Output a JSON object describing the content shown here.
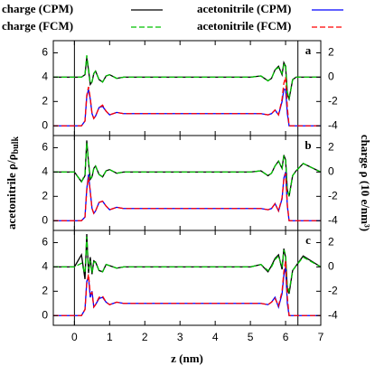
{
  "chart_data": [
    {
      "type": "line",
      "panel_label": "a",
      "x": [
        -0.6,
        0,
        0.2,
        0.3,
        0.35,
        0.4,
        0.45,
        0.5,
        0.55,
        0.6,
        0.7,
        0.8,
        0.9,
        1.0,
        1.2,
        1.4,
        1.6,
        2,
        3,
        4,
        5,
        5.3,
        5.5,
        5.6,
        5.7,
        5.8,
        5.9,
        5.95,
        6.0,
        6.05,
        6.1,
        6.2,
        6.3,
        6.5,
        7
      ],
      "xlim": [
        -0.6,
        7
      ],
      "xticks": [
        0,
        1,
        2,
        3,
        4,
        5,
        6,
        7
      ],
      "ylim": [
        -0.8,
        7
      ],
      "yticks": [
        0,
        2,
        4,
        6
      ],
      "y2lim": [
        -4.8,
        3
      ],
      "y2ticks": [
        -4,
        -2,
        0,
        2
      ],
      "vlines": [
        0,
        6.35
      ],
      "series": [
        {
          "name": "charge (CPM)",
          "color": "#000000",
          "dash": "none",
          "axis": "y2",
          "values": [
            0,
            0,
            0,
            0.2,
            1.6,
            0.6,
            -0.6,
            -0.4,
            0.3,
            0.5,
            -0.2,
            -0.4,
            0.1,
            0.2,
            -0.1,
            0,
            0,
            0,
            0,
            0,
            0,
            0.1,
            -0.3,
            -0.1,
            0.6,
            0.9,
            0.2,
            1.2,
            0.9,
            -1.4,
            -1.8,
            -0.2,
            0,
            0,
            0
          ]
        },
        {
          "name": "charge (FCM)",
          "color": "#00c000",
          "dash": "6 3",
          "axis": "y2",
          "values": [
            0,
            0,
            0,
            0.2,
            1.8,
            0.7,
            -0.5,
            -0.4,
            0.3,
            0.5,
            -0.2,
            -0.4,
            0.1,
            0.2,
            -0.1,
            0,
            0,
            0,
            0,
            0,
            0,
            0.1,
            -0.3,
            -0.1,
            0.6,
            0.8,
            0.3,
            1.0,
            1.1,
            -1.2,
            -1.8,
            -0.2,
            0,
            0,
            0
          ]
        },
        {
          "name": "acetonitrile (CPM)",
          "color": "#0000ff",
          "dash": "none",
          "axis": "y",
          "values": [
            0,
            0,
            0,
            0.4,
            2.4,
            3.0,
            2.2,
            1.0,
            0.6,
            0.8,
            1.5,
            1.6,
            1.2,
            0.9,
            1.1,
            1.0,
            1.0,
            1,
            1,
            1,
            1,
            1.0,
            0.9,
            1.0,
            1.3,
            0.9,
            2.0,
            3.0,
            3.0,
            1.0,
            0,
            0,
            0,
            0,
            0
          ]
        },
        {
          "name": "acetonitrile (FCM)",
          "color": "#ff0000",
          "dash": "6 3",
          "axis": "y",
          "values": [
            0,
            0,
            0,
            0.4,
            2.5,
            3.2,
            2.3,
            1.0,
            0.6,
            0.8,
            1.5,
            1.7,
            1.2,
            0.9,
            1.1,
            1.0,
            1.0,
            1,
            1,
            1,
            1,
            1.0,
            0.9,
            1.0,
            1.3,
            0.9,
            2.2,
            3.5,
            4.0,
            1.5,
            0,
            0,
            0,
            0,
            0
          ]
        }
      ]
    },
    {
      "type": "line",
      "panel_label": "b",
      "ylabel": "acetonitrile ρ/ρ",
      "ylabel_sub": "bulk",
      "y2label": "charge ρ (10 e/nm³)",
      "x": [
        -0.6,
        0,
        0.2,
        0.3,
        0.35,
        0.4,
        0.45,
        0.5,
        0.55,
        0.6,
        0.7,
        0.8,
        0.9,
        1.0,
        1.2,
        1.4,
        1.6,
        2,
        3,
        4,
        5,
        5.3,
        5.5,
        5.6,
        5.7,
        5.8,
        5.9,
        5.95,
        6.0,
        6.05,
        6.1,
        6.2,
        6.3,
        6.5,
        7
      ],
      "xlim": [
        -0.6,
        7
      ],
      "xticks": [
        0,
        1,
        2,
        3,
        4,
        5,
        6,
        7
      ],
      "ylim": [
        -0.8,
        7
      ],
      "yticks": [
        0,
        2,
        4,
        6
      ],
      "y2lim": [
        -4.8,
        3
      ],
      "y2ticks": [
        -4,
        -2,
        0,
        2
      ],
      "vlines": [
        0,
        6.35
      ],
      "series": [
        {
          "color": "#000000",
          "dash": "none",
          "axis": "y2",
          "values": [
            0,
            0,
            -0.8,
            -0.3,
            2.6,
            0.8,
            -0.6,
            -0.4,
            0.3,
            0.5,
            -0.2,
            -0.4,
            0.1,
            0.2,
            -0.1,
            0,
            0,
            0,
            0,
            0,
            0,
            0.1,
            -0.3,
            -0.1,
            0.5,
            0.9,
            0.3,
            1.4,
            1.0,
            -1.5,
            -2.0,
            -0.3,
            0.1,
            0.7,
            0
          ]
        },
        {
          "color": "#00c000",
          "dash": "6 3",
          "axis": "y2",
          "values": [
            0,
            0,
            -0.8,
            -0.2,
            2.4,
            0.9,
            -0.5,
            -0.4,
            0.3,
            0.5,
            -0.2,
            -0.4,
            0.1,
            0.2,
            -0.1,
            0,
            0,
            0,
            0,
            0,
            0,
            0.1,
            -0.3,
            -0.1,
            0.5,
            0.9,
            0.3,
            1.3,
            1.1,
            -1.4,
            -2.0,
            -0.3,
            0.1,
            0.7,
            0
          ]
        },
        {
          "color": "#0000ff",
          "dash": "none",
          "axis": "y",
          "values": [
            0,
            0,
            0,
            0.3,
            2.6,
            3.8,
            2.4,
            1.0,
            0.6,
            0.8,
            1.5,
            1.6,
            1.2,
            0.9,
            1.1,
            1.0,
            1.0,
            1,
            1,
            1,
            1,
            1.0,
            0.9,
            1.0,
            1.4,
            0.8,
            1.8,
            3.5,
            4.0,
            1.2,
            0,
            0,
            0,
            0,
            0
          ]
        },
        {
          "color": "#ff0000",
          "dash": "6 3",
          "axis": "y",
          "values": [
            0,
            0,
            0,
            0.3,
            2.5,
            3.6,
            2.4,
            1.0,
            0.6,
            0.8,
            1.5,
            1.6,
            1.2,
            0.9,
            1.1,
            1.0,
            1.0,
            1,
            1,
            1,
            1,
            1.0,
            0.9,
            1.0,
            1.4,
            0.8,
            1.9,
            3.4,
            3.9,
            1.3,
            0,
            0,
            0,
            0,
            0
          ]
        }
      ]
    },
    {
      "type": "line",
      "panel_label": "c",
      "xlabel": "z (nm)",
      "x": [
        -0.6,
        0,
        0.2,
        0.3,
        0.35,
        0.4,
        0.45,
        0.5,
        0.55,
        0.6,
        0.7,
        0.8,
        0.9,
        1.0,
        1.2,
        1.4,
        1.6,
        2,
        3,
        4,
        5,
        5.3,
        5.5,
        5.6,
        5.7,
        5.8,
        5.9,
        5.95,
        6.0,
        6.05,
        6.1,
        6.2,
        6.3,
        6.5,
        7
      ],
      "xlim": [
        -0.6,
        7
      ],
      "xticks": [
        0,
        1,
        2,
        3,
        4,
        5,
        6,
        7
      ],
      "ylim": [
        -0.8,
        7
      ],
      "yticks": [
        0,
        2,
        4,
        6
      ],
      "y2lim": [
        -4.8,
        3
      ],
      "y2ticks": [
        -4,
        -2,
        0,
        2
      ],
      "vlines": [
        0,
        6.35
      ],
      "series": [
        {
          "color": "#000000",
          "dash": "none",
          "axis": "y2",
          "values": [
            0,
            0,
            1.0,
            -1.0,
            2.7,
            -0.5,
            0.8,
            -0.6,
            0.5,
            0.4,
            -0.3,
            -0.4,
            0.2,
            0.1,
            -0.1,
            0,
            0,
            0,
            0,
            0,
            0,
            0.2,
            -0.4,
            0.1,
            0.7,
            1.0,
            -0.2,
            1.5,
            0.8,
            -1.8,
            -2.2,
            -0.3,
            0.1,
            0.9,
            0
          ]
        },
        {
          "color": "#00c000",
          "dash": "6 3",
          "axis": "y2",
          "values": [
            0,
            0,
            0.3,
            -0.5,
            2.5,
            -0.2,
            0.5,
            -0.5,
            0.4,
            0.4,
            -0.3,
            -0.4,
            0.2,
            0.1,
            -0.1,
            0,
            0,
            0,
            0,
            0,
            0,
            0.2,
            -0.3,
            0.0,
            0.6,
            0.9,
            0.0,
            1.4,
            1.0,
            -1.6,
            -2.0,
            -0.3,
            0.1,
            0.8,
            0
          ]
        },
        {
          "color": "#0000ff",
          "dash": "none",
          "axis": "y",
          "values": [
            0,
            0,
            0,
            0.5,
            2.8,
            3.2,
            1.5,
            2.0,
            0.7,
            0.9,
            1.4,
            1.5,
            1.1,
            0.9,
            1.1,
            1.0,
            1.0,
            1,
            1,
            1,
            1,
            1.0,
            0.9,
            1.1,
            1.5,
            0.7,
            1.8,
            3.3,
            4.0,
            1.0,
            0,
            0,
            0,
            0,
            0
          ]
        },
        {
          "color": "#ff0000",
          "dash": "6 3",
          "axis": "y",
          "values": [
            0,
            0,
            0,
            0.5,
            2.6,
            3.4,
            1.8,
            1.9,
            0.7,
            0.9,
            1.5,
            1.6,
            1.1,
            0.9,
            1.1,
            1.0,
            1.0,
            1,
            1,
            1,
            1,
            1.0,
            0.9,
            1.1,
            1.4,
            0.8,
            2.0,
            3.6,
            4.5,
            1.5,
            0,
            0,
            0,
            0,
            0
          ]
        }
      ]
    }
  ]
}
